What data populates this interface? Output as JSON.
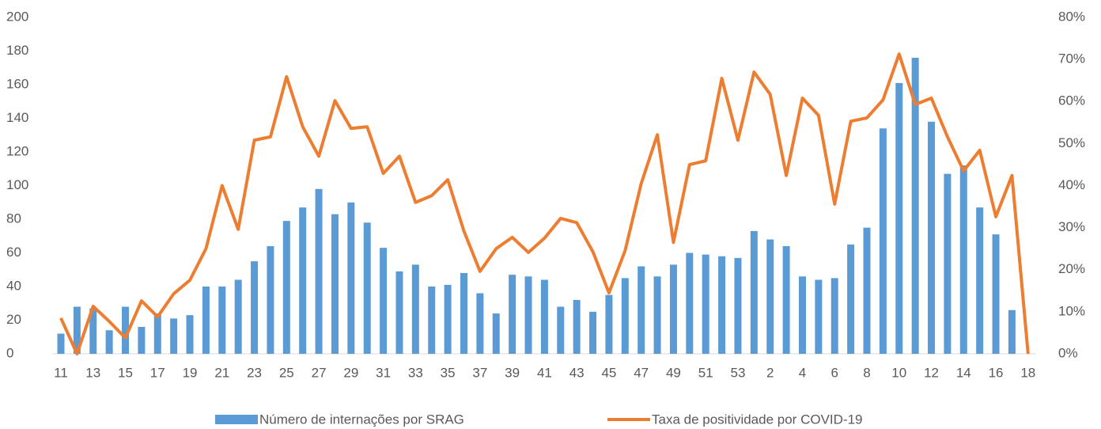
{
  "chart_data": {
    "type": "bar_line",
    "categories": [
      "11",
      null,
      "13",
      null,
      "15",
      null,
      "17",
      null,
      "19",
      null,
      "21",
      null,
      "23",
      null,
      "25",
      null,
      "27",
      null,
      "29",
      null,
      "31",
      null,
      "33",
      null,
      "35",
      null,
      "37",
      null,
      "39",
      null,
      "41",
      null,
      "43",
      null,
      "45",
      null,
      "47",
      null,
      "49",
      null,
      "51",
      null,
      "53",
      null,
      "2",
      null,
      "4",
      null,
      "6",
      null,
      "8",
      null,
      "10",
      null,
      "12",
      null,
      "14",
      null,
      "16",
      null,
      "18"
    ],
    "series": [
      {
        "name": "Número de internações por SRAG",
        "type": "bar",
        "color": "#5b9bd5",
        "axis": "y",
        "values": [
          12,
          28,
          27,
          14,
          28,
          16,
          24,
          21,
          23,
          40,
          40,
          44,
          55,
          64,
          79,
          87,
          98,
          83,
          90,
          78,
          63,
          49,
          53,
          40,
          41,
          48,
          36,
          24,
          47,
          46,
          44,
          28,
          32,
          25,
          35,
          45,
          52,
          46,
          53,
          60,
          59,
          58,
          57,
          73,
          68,
          64,
          46,
          44,
          45,
          65,
          75,
          134,
          161,
          176,
          138,
          107,
          112,
          87,
          71,
          26,
          0
        ]
      },
      {
        "name": "Taxa de positividade por COVID-19",
        "type": "line",
        "color": "#ed7d31",
        "axis": "y2",
        "values": [
          8.5,
          0,
          11.3,
          7.7,
          3.8,
          12.6,
          8.8,
          14.3,
          17.5,
          25,
          40,
          29.6,
          50.8,
          51.6,
          65.9,
          54,
          47,
          60.2,
          53.6,
          54,
          42.9,
          47,
          36,
          37.6,
          41.4,
          29.2,
          19.6,
          25,
          27.7,
          24.1,
          27.5,
          32.2,
          31.2,
          24.3,
          14.5,
          24.5,
          40.5,
          52.1,
          26.5,
          45,
          45.9,
          65.5,
          50.8,
          67,
          61.7,
          42.4,
          60.8,
          56.7,
          35.6,
          55.3,
          56.1,
          60.4,
          71.3,
          59.3,
          60.8,
          51.6,
          43.5,
          48.4,
          32.6,
          42.4,
          0
        ]
      }
    ],
    "ylim": [
      0,
      200
    ],
    "yticks": [
      0,
      20,
      40,
      60,
      80,
      100,
      120,
      140,
      160,
      180,
      200
    ],
    "y2lim": [
      0,
      80
    ],
    "y2ticks": [
      {
        "value": 0,
        "label": "0%"
      },
      {
        "value": 10,
        "label": "10%"
      },
      {
        "value": 20,
        "label": "20%"
      },
      {
        "value": 30,
        "label": "30%"
      },
      {
        "value": 40,
        "label": "40%"
      },
      {
        "value": 50,
        "label": "50%"
      },
      {
        "value": 60,
        "label": "60%"
      },
      {
        "value": 70,
        "label": "70%"
      },
      {
        "value": 80,
        "label": "80%"
      }
    ],
    "grid": false,
    "legend": "bottom"
  }
}
